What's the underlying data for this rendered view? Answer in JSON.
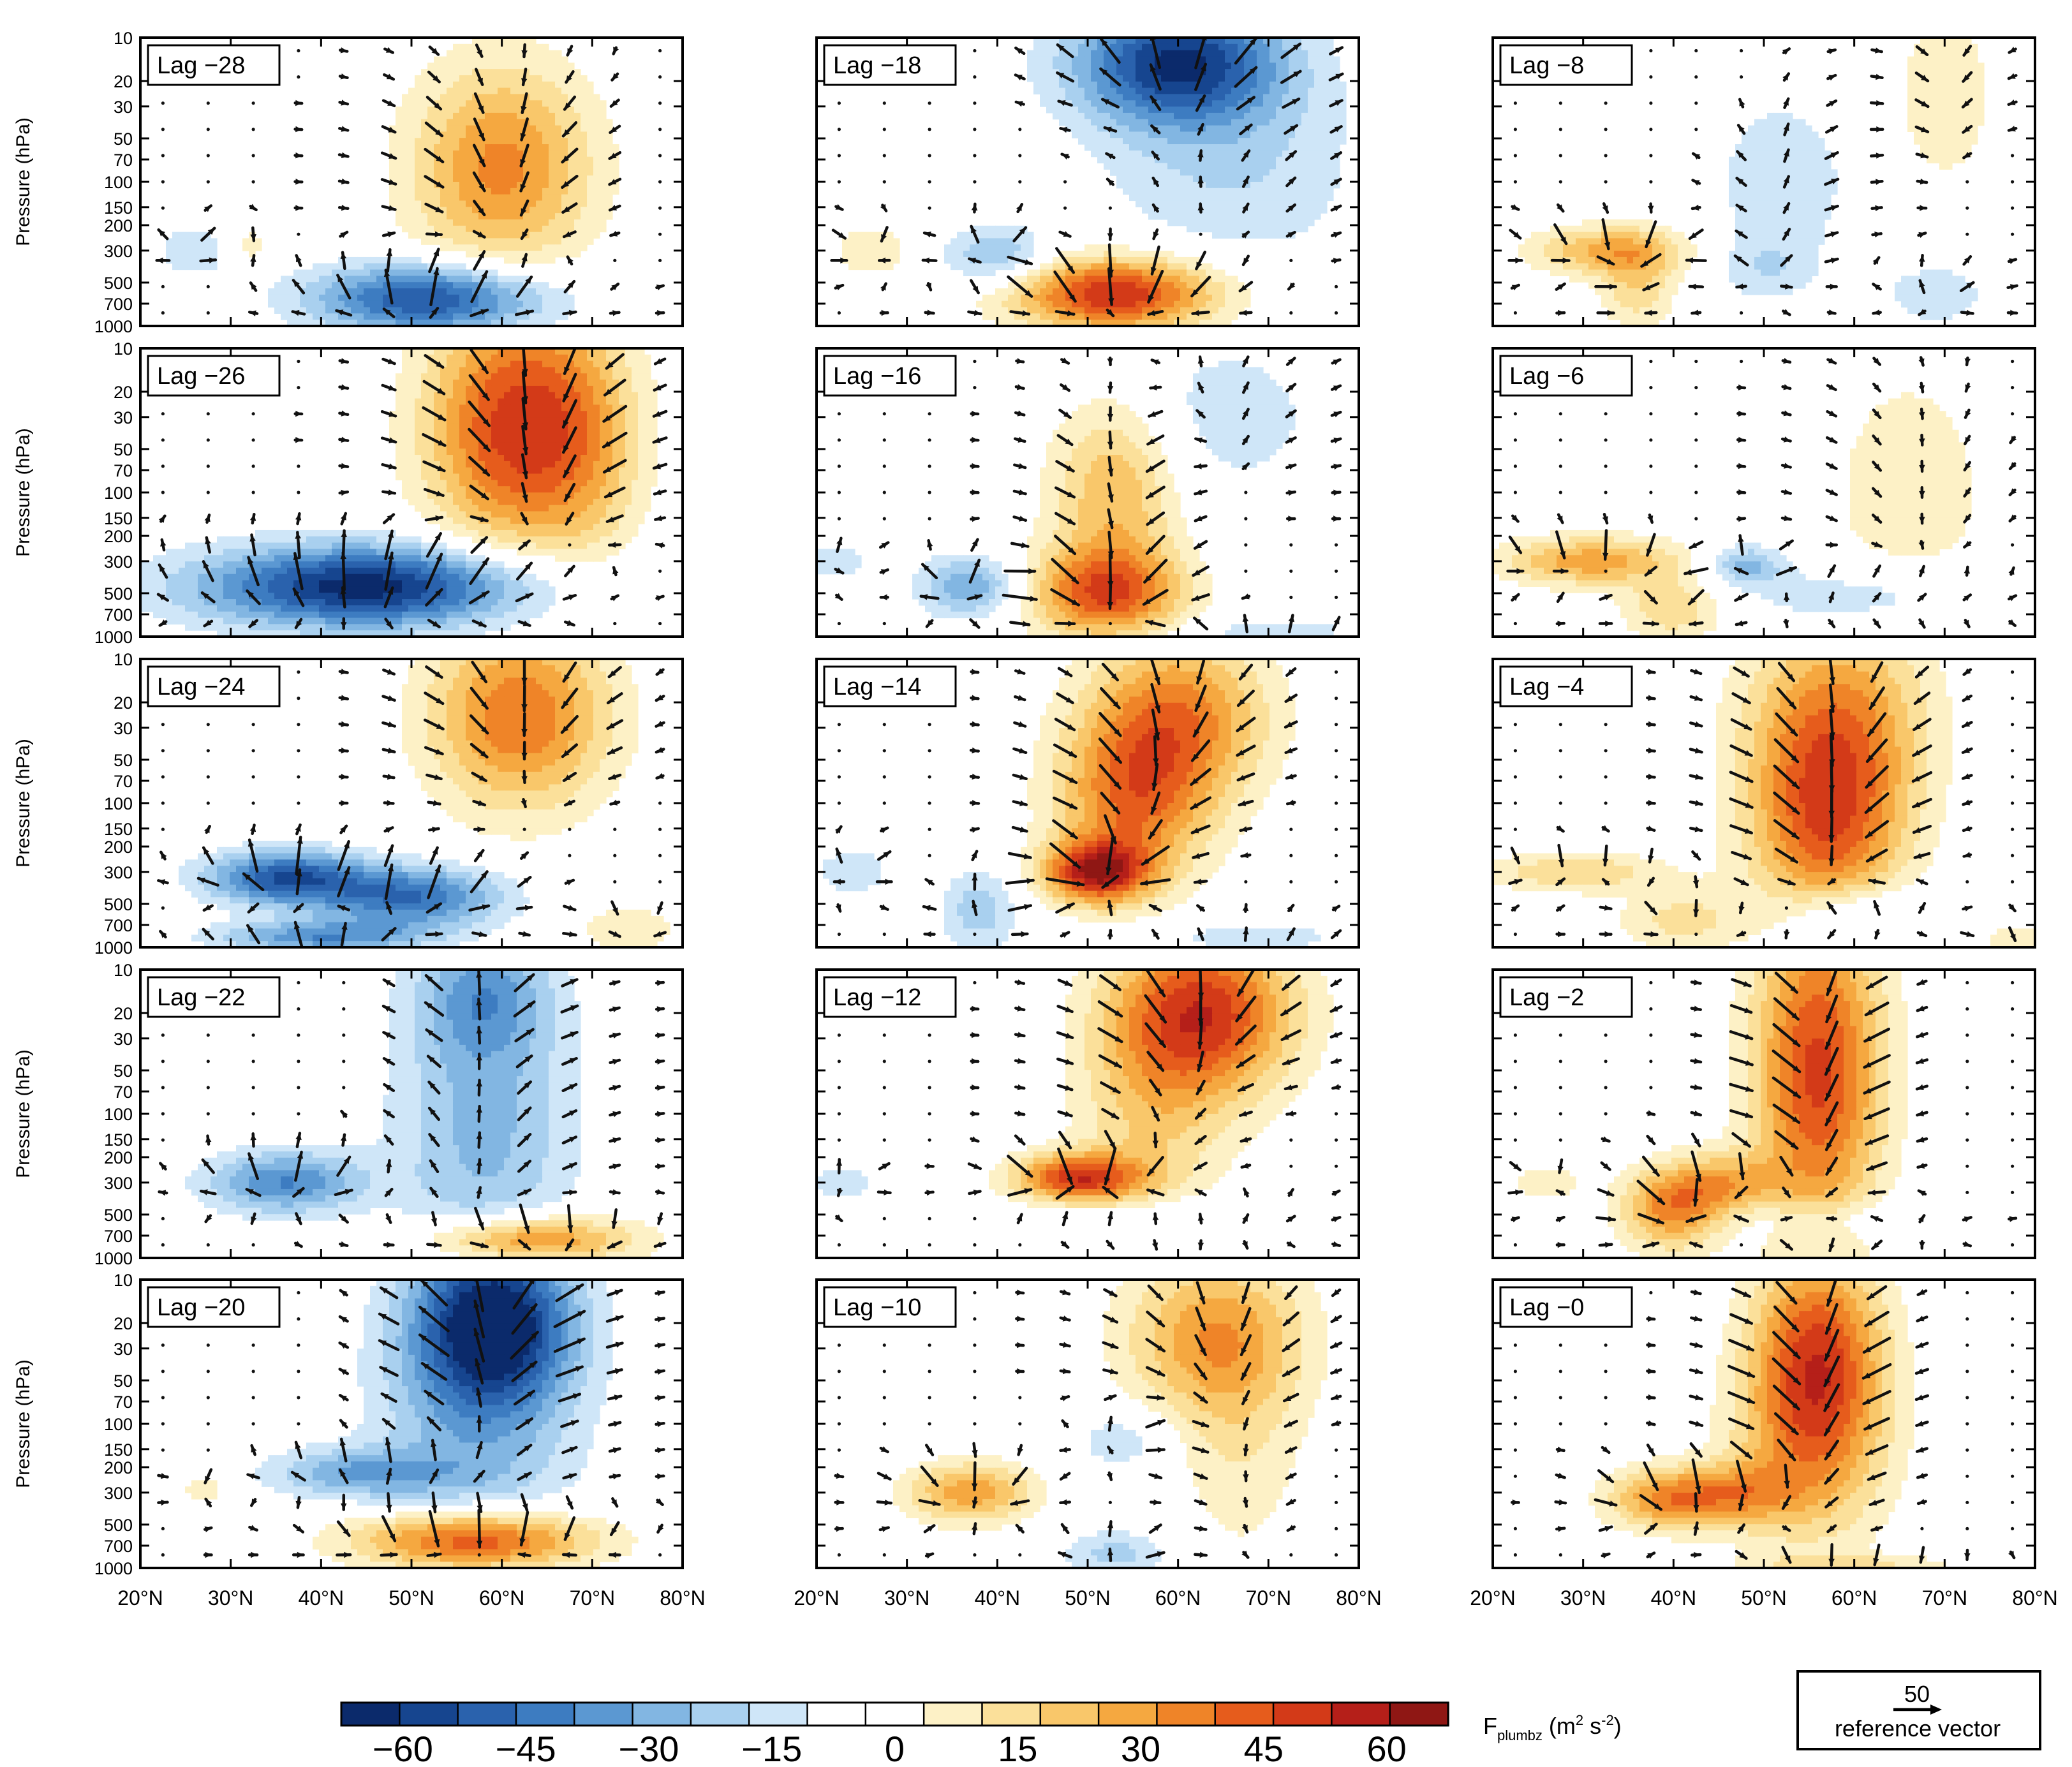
{
  "chart_data": {
    "type": "heatmap",
    "description_variable": "Fplumbz",
    "colorbar": {
      "ticks": [
        "−60",
        "−45",
        "−30",
        "−15",
        "0",
        "15",
        "30",
        "45",
        "60"
      ],
      "levels": [
        -67.5,
        -60,
        -52.5,
        -45,
        -37.5,
        -30,
        -22.5,
        -15,
        -7.5,
        0,
        7.5,
        15,
        22.5,
        30,
        37.5,
        45,
        52.5,
        60,
        67.5
      ],
      "colors": [
        "#0b2a6b",
        "#16458f",
        "#2a62ad",
        "#3d7cc1",
        "#5b98d2",
        "#82b6e2",
        "#a9d0ef",
        "#cfe6f8",
        "#ffffff",
        "#ffffff",
        "#fdf1c6",
        "#fbe09a",
        "#f9c76a",
        "#f5a840",
        "#ef8428",
        "#e65c1c",
        "#d33a18",
        "#b51f19",
        "#8f1714"
      ],
      "label_main": "F",
      "label_sub": "plumbz",
      "label_unit_open": " (m",
      "label_unit_sup": "2",
      "label_unit_mid": " s",
      "label_unit_sup2": "-2",
      "label_unit_close": ")"
    },
    "reference_vector": {
      "value": "50",
      "label": "reference vector"
    },
    "xaxis": {
      "range": [
        20,
        80
      ],
      "ticks": [
        20,
        30,
        40,
        50,
        60,
        70,
        80
      ],
      "labels": [
        "20°N",
        "30°N",
        "40°N",
        "50°N",
        "60°N",
        "70°N",
        "80°N"
      ]
    },
    "yaxis": {
      "label": "Pressure (hPa)",
      "scale": "log",
      "range": [
        1000,
        10
      ],
      "ticks": [
        10,
        20,
        30,
        50,
        70,
        100,
        150,
        200,
        300,
        500,
        700,
        1000
      ],
      "labels": [
        "10",
        "20",
        "30",
        "50",
        "70",
        "100",
        "150",
        "200",
        "300",
        "500",
        "700",
        "1000"
      ]
    },
    "panels": [
      {
        "label": "Lag −28",
        "blobs": [
          {
            "lat": 60,
            "p": 80,
            "amp": 40,
            "slat": 7,
            "sp": 0.5
          },
          {
            "lat": 52,
            "p": 650,
            "amp": -55,
            "slat": 9,
            "sp": 0.17
          },
          {
            "lat": 26,
            "p": 300,
            "amp": -15,
            "slat": 3,
            "sp": 0.12
          },
          {
            "lat": 32,
            "p": 280,
            "amp": 12,
            "slat": 2,
            "sp": 0.1
          }
        ]
      },
      {
        "label": "Lag −18",
        "blobs": [
          {
            "lat": 60,
            "p": 15,
            "amp": -60,
            "slat": 8,
            "sp": 0.3
          },
          {
            "lat": 66,
            "p": 80,
            "amp": -15,
            "slat": 10,
            "sp": 0.5
          },
          {
            "lat": 53,
            "p": 600,
            "amp": 60,
            "slat": 8,
            "sp": 0.18
          },
          {
            "lat": 40,
            "p": 330,
            "amp": -25,
            "slat": 4,
            "sp": 0.15
          },
          {
            "lat": 26,
            "p": 300,
            "amp": 15,
            "slat": 3,
            "sp": 0.12
          }
        ]
      },
      {
        "label": "Lag −8",
        "blobs": [
          {
            "lat": 33,
            "p": 300,
            "amp": 32,
            "slat": 6,
            "sp": 0.12
          },
          {
            "lat": 36,
            "p": 550,
            "amp": 20,
            "slat": 3,
            "sp": 0.2
          },
          {
            "lat": 52,
            "p": 100,
            "amp": -15,
            "slat": 5,
            "sp": 0.4
          },
          {
            "lat": 50,
            "p": 400,
            "amp": -12,
            "slat": 4,
            "sp": 0.15
          },
          {
            "lat": 70,
            "p": 25,
            "amp": 14,
            "slat": 4,
            "sp": 0.45
          },
          {
            "lat": 69,
            "p": 600,
            "amp": -14,
            "slat": 4,
            "sp": 0.15
          }
        ]
      },
      {
        "label": "Lag −26",
        "blobs": [
          {
            "lat": 62,
            "p": 35,
            "amp": 58,
            "slat": 7,
            "sp": 0.6
          },
          {
            "lat": 45,
            "p": 450,
            "amp": -65,
            "slat": 13,
            "sp": 0.2
          },
          {
            "lat": 70,
            "p": 50,
            "amp": 12,
            "slat": 4,
            "sp": 0.6
          }
        ]
      },
      {
        "label": "Lag −16",
        "blobs": [
          {
            "lat": 52,
            "p": 500,
            "amp": 48,
            "slat": 6,
            "sp": 0.22
          },
          {
            "lat": 53,
            "p": 100,
            "amp": 30,
            "slat": 5,
            "sp": 0.45
          },
          {
            "lat": 37,
            "p": 450,
            "amp": -30,
            "slat": 4,
            "sp": 0.15
          },
          {
            "lat": 65,
            "p": 30,
            "amp": -12,
            "slat": 8,
            "sp": 0.4
          },
          {
            "lat": 22,
            "p": 300,
            "amp": -12,
            "slat": 3,
            "sp": 0.1
          },
          {
            "lat": 70,
            "p": 900,
            "amp": -12,
            "slat": 8,
            "sp": 0.06
          }
        ]
      },
      {
        "label": "Lag −6",
        "blobs": [
          {
            "lat": 31,
            "p": 300,
            "amp": 35,
            "slat": 7,
            "sp": 0.12
          },
          {
            "lat": 40,
            "p": 650,
            "amp": 22,
            "slat": 4,
            "sp": 0.15
          },
          {
            "lat": 48,
            "p": 320,
            "amp": -25,
            "slat": 3,
            "sp": 0.1
          },
          {
            "lat": 62,
            "p": 520,
            "amp": -15,
            "slat": 10,
            "sp": 0.15
          },
          {
            "lat": 66,
            "p": 100,
            "amp": 12,
            "slat": 7,
            "sp": 0.7
          }
        ]
      },
      {
        "label": "Lag −24",
        "blobs": [
          {
            "lat": 62,
            "p": 25,
            "amp": 45,
            "slat": 7,
            "sp": 0.45
          },
          {
            "lat": 36,
            "p": 330,
            "amp": -52,
            "slat": 6,
            "sp": 0.13
          },
          {
            "lat": 50,
            "p": 450,
            "amp": -45,
            "slat": 7,
            "sp": 0.15
          },
          {
            "lat": 40,
            "p": 850,
            "amp": -35,
            "slat": 8,
            "sp": 0.08
          },
          {
            "lat": 74,
            "p": 750,
            "amp": 14,
            "slat": 4,
            "sp": 0.12
          }
        ]
      },
      {
        "label": "Lag −14",
        "blobs": [
          {
            "lat": 51,
            "p": 300,
            "amp": 60,
            "slat": 4,
            "sp": 0.15
          },
          {
            "lat": 55,
            "p": 100,
            "amp": 40,
            "slat": 6,
            "sp": 0.4
          },
          {
            "lat": 60,
            "p": 25,
            "amp": 40,
            "slat": 7,
            "sp": 0.4
          },
          {
            "lat": 38,
            "p": 550,
            "amp": -20,
            "slat": 3,
            "sp": 0.2
          },
          {
            "lat": 24,
            "p": 300,
            "amp": -14,
            "slat": 3,
            "sp": 0.12
          },
          {
            "lat": 68,
            "p": 850,
            "amp": -12,
            "slat": 8,
            "sp": 0.08
          }
        ]
      },
      {
        "label": "Lag −4",
        "blobs": [
          {
            "lat": 57,
            "p": 150,
            "amp": 45,
            "slat": 6,
            "sp": 0.5
          },
          {
            "lat": 58,
            "p": 25,
            "amp": 35,
            "slat": 7,
            "sp": 0.5
          },
          {
            "lat": 29,
            "p": 300,
            "amp": 22,
            "slat": 7,
            "sp": 0.1
          },
          {
            "lat": 41,
            "p": 650,
            "amp": 18,
            "slat": 5,
            "sp": 0.15
          },
          {
            "lat": 60,
            "p": 600,
            "amp": -22,
            "slat": 6,
            "sp": 0.15
          },
          {
            "lat": 78,
            "p": 900,
            "amp": 12,
            "slat": 3,
            "sp": 0.1
          }
        ]
      },
      {
        "label": "Lag −22",
        "blobs": [
          {
            "lat": 58,
            "p": 120,
            "amp": -25,
            "slat": 7,
            "sp": 0.8
          },
          {
            "lat": 36,
            "p": 300,
            "amp": -38,
            "slat": 6,
            "sp": 0.15
          },
          {
            "lat": 63,
            "p": 750,
            "amp": 45,
            "slat": 8,
            "sp": 0.12
          },
          {
            "lat": 58,
            "p": 15,
            "amp": -25,
            "slat": 5,
            "sp": 0.3
          }
        ]
      },
      {
        "label": "Lag −12",
        "blobs": [
          {
            "lat": 63,
            "p": 20,
            "amp": 55,
            "slat": 7,
            "sp": 0.4
          },
          {
            "lat": 49,
            "p": 280,
            "amp": 55,
            "slat": 5,
            "sp": 0.12
          },
          {
            "lat": 57,
            "p": 100,
            "amp": 20,
            "slat": 6,
            "sp": 0.6
          },
          {
            "lat": 23,
            "p": 300,
            "amp": -12,
            "slat": 3,
            "sp": 0.1
          },
          {
            "lat": 58,
            "p": 550,
            "amp": -12,
            "slat": 10,
            "sp": 0.12
          }
        ]
      },
      {
        "label": "Lag −2",
        "blobs": [
          {
            "lat": 56,
            "p": 50,
            "amp": 55,
            "slat": 5,
            "sp": 0.8
          },
          {
            "lat": 40,
            "p": 450,
            "amp": 42,
            "slat": 4,
            "sp": 0.2
          },
          {
            "lat": 46,
            "p": 300,
            "amp": 25,
            "slat": 4,
            "sp": 0.15
          },
          {
            "lat": 57,
            "p": 550,
            "amp": -12,
            "slat": 8,
            "sp": 0.1
          },
          {
            "lat": 26,
            "p": 300,
            "amp": 12,
            "slat": 3,
            "sp": 0.1
          }
        ]
      },
      {
        "label": "Lag −20",
        "blobs": [
          {
            "lat": 59,
            "p": 20,
            "amp": -68,
            "slat": 6,
            "sp": 0.4
          },
          {
            "lat": 57,
            "p": 120,
            "amp": -22,
            "slat": 8,
            "sp": 0.7
          },
          {
            "lat": 44,
            "p": 220,
            "amp": -28,
            "slat": 7,
            "sp": 0.12
          },
          {
            "lat": 57,
            "p": 650,
            "amp": 60,
            "slat": 9,
            "sp": 0.15
          },
          {
            "lat": 27,
            "p": 280,
            "amp": 12,
            "slat": 2,
            "sp": 0.1
          }
        ]
      },
      {
        "label": "Lag −10",
        "blobs": [
          {
            "lat": 37,
            "p": 300,
            "amp": 35,
            "slat": 5,
            "sp": 0.15
          },
          {
            "lat": 64,
            "p": 25,
            "amp": 35,
            "slat": 7,
            "sp": 0.4
          },
          {
            "lat": 67,
            "p": 150,
            "amp": 12,
            "slat": 5,
            "sp": 0.6
          },
          {
            "lat": 53,
            "p": 800,
            "amp": -18,
            "slat": 4,
            "sp": 0.12
          },
          {
            "lat": 54,
            "p": 130,
            "amp": -14,
            "slat": 4,
            "sp": 0.15
          }
        ]
      },
      {
        "label": "Lag −0",
        "blobs": [
          {
            "lat": 56,
            "p": 30,
            "amp": 48,
            "slat": 5,
            "sp": 0.5
          },
          {
            "lat": 40,
            "p": 330,
            "amp": 42,
            "slat": 5,
            "sp": 0.15
          },
          {
            "lat": 55,
            "p": 150,
            "amp": 30,
            "slat": 6,
            "sp": 0.5
          },
          {
            "lat": 60,
            "p": 950,
            "amp": 15,
            "slat": 8,
            "sp": 0.05
          },
          {
            "lat": 48,
            "p": 300,
            "amp": 20,
            "slat": 4,
            "sp": 0.15
          }
        ]
      }
    ]
  }
}
